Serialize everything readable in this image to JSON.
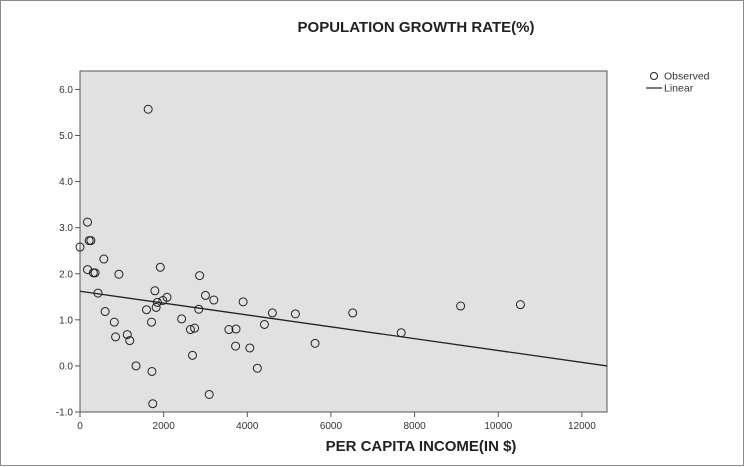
{
  "chart_data": {
    "type": "scatter",
    "title": "POPULATION GROWTH RATE(%)",
    "xlabel": "PER CAPITA INCOME(IN $)",
    "ylabel": "",
    "xlim": [
      0,
      12600
    ],
    "ylim": [
      -1.0,
      6.4
    ],
    "x_ticks": [
      0,
      2000,
      4000,
      6000,
      8000,
      10000,
      12000
    ],
    "x_tick_labels": [
      "0",
      "2000",
      "4000",
      "6000",
      "8000",
      "10000",
      "12000"
    ],
    "y_ticks": [
      -1.0,
      0.0,
      1.0,
      2.0,
      3.0,
      4.0,
      5.0,
      6.0
    ],
    "y_tick_labels": [
      "-1.0",
      "0.0",
      "1.0",
      "2.0",
      "3.0",
      "4.0",
      "5.0",
      "6.0"
    ],
    "grid": false,
    "plot_background": "#e1e1e1",
    "legend_position": "top-right",
    "series": [
      {
        "name": "Observed",
        "kind": "points",
        "marker": "open-circle",
        "color": "#222222",
        "points": [
          [
            0,
            2.58
          ],
          [
            180,
            3.12
          ],
          [
            220,
            2.72
          ],
          [
            260,
            2.72
          ],
          [
            180,
            2.09
          ],
          [
            320,
            2.02
          ],
          [
            360,
            2.02
          ],
          [
            430,
            1.58
          ],
          [
            570,
            2.32
          ],
          [
            600,
            1.18
          ],
          [
            820,
            0.95
          ],
          [
            850,
            0.63
          ],
          [
            930,
            1.99
          ],
          [
            1130,
            0.68
          ],
          [
            1190,
            0.55
          ],
          [
            1340,
            0.0
          ],
          [
            1590,
            1.22
          ],
          [
            1630,
            5.57
          ],
          [
            1720,
            -0.12
          ],
          [
            1710,
            0.95
          ],
          [
            1740,
            -0.82
          ],
          [
            1790,
            1.63
          ],
          [
            1820,
            1.27
          ],
          [
            1850,
            1.38
          ],
          [
            1920,
            2.14
          ],
          [
            1980,
            1.42
          ],
          [
            2080,
            1.49
          ],
          [
            2430,
            1.02
          ],
          [
            2640,
            0.79
          ],
          [
            2690,
            0.23
          ],
          [
            2740,
            0.82
          ],
          [
            2840,
            1.23
          ],
          [
            2860,
            1.96
          ],
          [
            3000,
            1.53
          ],
          [
            3090,
            -0.62
          ],
          [
            3200,
            1.43
          ],
          [
            3560,
            0.79
          ],
          [
            3720,
            0.43
          ],
          [
            3730,
            0.8
          ],
          [
            3900,
            1.39
          ],
          [
            4060,
            0.39
          ],
          [
            4240,
            -0.05
          ],
          [
            4410,
            0.9
          ],
          [
            4600,
            1.15
          ],
          [
            5150,
            1.13
          ],
          [
            5620,
            0.49
          ],
          [
            6520,
            1.15
          ],
          [
            7680,
            0.72
          ],
          [
            9100,
            1.3
          ],
          [
            10530,
            1.33
          ]
        ]
      },
      {
        "name": "Linear",
        "kind": "line",
        "color": "#222222",
        "points": [
          [
            0,
            1.62
          ],
          [
            12600,
            0.0
          ]
        ]
      }
    ]
  }
}
